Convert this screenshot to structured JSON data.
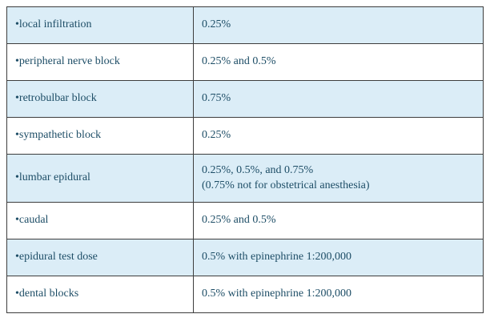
{
  "table": {
    "description": "Concentration table: anesthesia procedure types and corresponding solution strengths",
    "rows": [
      {
        "label": "•local infiltration",
        "value": "0.25%"
      },
      {
        "label": "•peripheral nerve block",
        "value": "0.25% and 0.5%"
      },
      {
        "label": "•retrobulbar block",
        "value": "0.75%"
      },
      {
        "label": "•sympathetic block",
        "value": "0.25%"
      },
      {
        "label": "•lumbar epidural",
        "value": "0.25%, 0.5%, and 0.75%\n(0.75% not for obstetrical anesthesia)"
      },
      {
        "label": "•caudal",
        "value": "0.25% and 0.5%"
      },
      {
        "label": "•epidural test dose",
        "value": "0.5% with epinephrine 1:200,000"
      },
      {
        "label": "•dental blocks",
        "value": "0.5% with epinephrine 1:200,000"
      }
    ],
    "colors": {
      "alt_row_background": "#dbedf7",
      "row_background": "#ffffff",
      "text": "#1d4d66",
      "border": "#3d3d3d"
    }
  }
}
